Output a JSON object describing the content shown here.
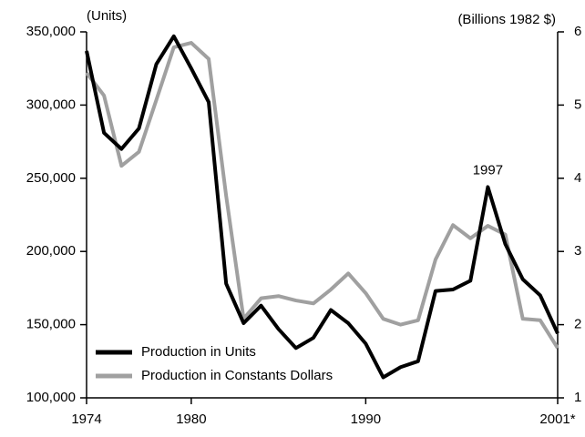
{
  "chart_data": {
    "type": "line",
    "y_label": "(Units)",
    "y2_label": "(Billions 1982 $)",
    "x": [
      1974,
      1975,
      1976,
      1977,
      1978,
      1979,
      1980,
      1981,
      1982,
      1983,
      1984,
      1985,
      1986,
      1987,
      1988,
      1989,
      1990,
      1991,
      1992,
      1993,
      1994,
      1995,
      1996,
      1997,
      1998,
      1999,
      2000,
      2001
    ],
    "xlim": [
      1974,
      2001
    ],
    "xticks": [
      1974,
      1980,
      1990,
      {
        "value": 2001,
        "label": "2001*"
      }
    ],
    "ylim": [
      100000,
      350000
    ],
    "yticks": [
      {
        "value": 100000,
        "label": "100,000"
      },
      {
        "value": 150000,
        "label": "150,000"
      },
      {
        "value": 200000,
        "label": "200,000"
      },
      {
        "value": 250000,
        "label": "250,000"
      },
      {
        "value": 300000,
        "label": "300,000"
      },
      {
        "value": 350000,
        "label": "350,000"
      }
    ],
    "y2lim": [
      1,
      6
    ],
    "y2ticks": [
      1,
      2,
      3,
      4,
      5,
      6
    ],
    "legend": "lower left",
    "series": [
      {
        "name": "Production in Units",
        "color": "#000000",
        "values": [
          337000,
          281000,
          270000,
          284000,
          328000,
          347000,
          325000,
          302000,
          178000,
          151000,
          163000,
          147000,
          134000,
          141000,
          160000,
          151000,
          137000,
          114000,
          121000,
          125000,
          173000,
          174000,
          180000,
          244000,
          205000,
          181000,
          170000,
          144000
        ]
      },
      {
        "name": "Production in Constants Dollars",
        "color": "#a0a0a0",
        "axis": "y2",
        "values": [
          5.44,
          5.13,
          4.17,
          4.36,
          5.07,
          5.79,
          5.85,
          5.63,
          3.76,
          2.08,
          2.36,
          2.39,
          2.33,
          2.29,
          2.48,
          2.7,
          2.43,
          2.08,
          2.0,
          2.06,
          2.89,
          3.36,
          3.18,
          3.35,
          3.23,
          2.08,
          2.06,
          1.68
        ]
      }
    ],
    "annotations": [
      {
        "text": "1997",
        "x": 1997
      }
    ]
  }
}
